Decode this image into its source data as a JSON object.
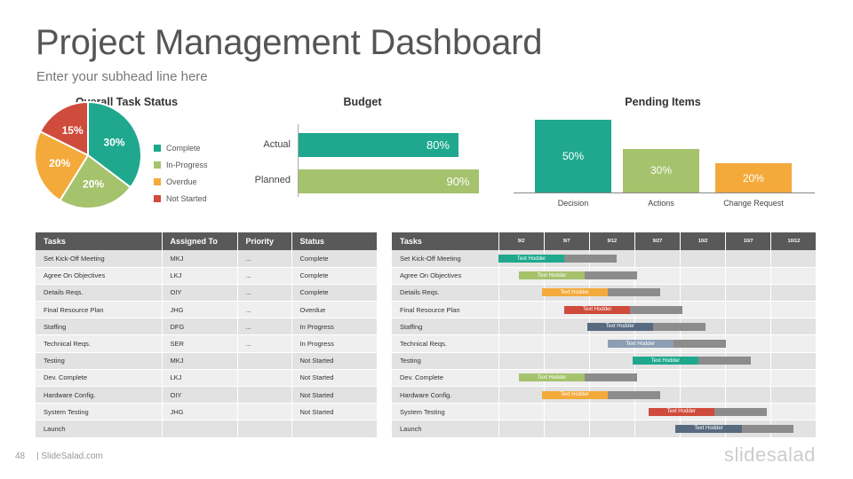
{
  "header": {
    "title": "Project Management Dashboard",
    "subtitle": "Enter your subhead line here"
  },
  "task_status": {
    "title": "Overall Task Status",
    "legend": [
      "Complete",
      "In-Progress",
      "Overdue",
      "Not Started"
    ]
  },
  "budget": {
    "title": "Budget",
    "labels": [
      "Actual",
      "Planned"
    ]
  },
  "pending": {
    "title": "Pending Items"
  },
  "colors": {
    "teal": "#1fa88e",
    "green": "#a5c26c",
    "orange": "#f3aa3b",
    "red": "#cf4b3b",
    "slate": "#576a80",
    "blue_gray": "#8d9eb3",
    "gray": "#8c8c8c"
  },
  "chart_data": [
    {
      "type": "pie",
      "title": "Overall Task Status",
      "labels": [
        "Complete",
        "In-Progress",
        "Overdue",
        "Not Started"
      ],
      "values": [
        30,
        20,
        20,
        15
      ],
      "value_labels": [
        "30%",
        "20%",
        "20%",
        "15%"
      ],
      "colors": [
        "#1fa88e",
        "#a5c26c",
        "#f3aa3b",
        "#cf4b3b"
      ]
    },
    {
      "type": "bar",
      "orientation": "horizontal",
      "title": "Budget",
      "categories": [
        "Actual",
        "Planned"
      ],
      "values": [
        80,
        90
      ],
      "value_labels": [
        "80%",
        "90%"
      ],
      "colors": [
        "#1fa88e",
        "#a5c26c"
      ],
      "xlim": [
        0,
        100
      ]
    },
    {
      "type": "bar",
      "title": "Pending Items",
      "categories": [
        "Decision",
        "Actions",
        "Change Request"
      ],
      "values": [
        50,
        30,
        20
      ],
      "value_labels": [
        "50%",
        "30%",
        "20%"
      ],
      "colors": [
        "#1fa88e",
        "#a5c26c",
        "#f3aa3b"
      ],
      "ylim": [
        0,
        50
      ]
    }
  ],
  "task_table": {
    "headers": [
      "Tasks",
      "Assigned To",
      "Priority",
      "Status"
    ],
    "rows": [
      [
        "Set Kick-Off Meeting",
        "MKJ",
        "...",
        "Complete"
      ],
      [
        "Agree On Objectives",
        "LKJ",
        "...",
        "Complete"
      ],
      [
        "Details Reqs.",
        "OIY",
        "...",
        "Complete"
      ],
      [
        "Final Resource Plan",
        "JHG",
        "...",
        "Overdue"
      ],
      [
        "Staffing",
        "DFG",
        "...",
        "In Progress"
      ],
      [
        "Technical Reqs.",
        "SER",
        "...",
        "In Progress"
      ],
      [
        "Testing",
        "MKJ",
        "",
        "Not Started"
      ],
      [
        "Dev. Complete",
        "LKJ",
        "",
        "Not Started"
      ],
      [
        "Hardware Config.",
        "OIY",
        "",
        "Not Started"
      ],
      [
        "System Testing",
        "JHG",
        "",
        "Not Started"
      ],
      [
        "Launch",
        "",
        "",
        ""
      ]
    ]
  },
  "gantt": {
    "header": "Tasks",
    "dates": [
      "9/2",
      "9/7",
      "9/12",
      "9/27",
      "10/2",
      "10/7",
      "10/12"
    ],
    "bar_label": "Text Hodder",
    "tasks": [
      {
        "name": "Set Kick-Off Meeting",
        "start": 0.0,
        "mid": 1.45,
        "end": 2.6,
        "color": "#1fa88e"
      },
      {
        "name": "Agree On Objectives",
        "start": 0.45,
        "mid": 1.9,
        "end": 3.05,
        "color": "#a5c26c"
      },
      {
        "name": "Details Reqs.",
        "start": 0.95,
        "mid": 2.4,
        "end": 3.55,
        "color": "#f3aa3b"
      },
      {
        "name": "Final Resource Plan",
        "start": 1.45,
        "mid": 2.9,
        "end": 4.05,
        "color": "#cf4b3b"
      },
      {
        "name": "Staffing",
        "start": 1.95,
        "mid": 3.4,
        "end": 4.55,
        "color": "#576a80"
      },
      {
        "name": "Technical Reqs.",
        "start": 2.4,
        "mid": 3.85,
        "end": 5.0,
        "color": "#8d9eb3"
      },
      {
        "name": "Testing",
        "start": 2.95,
        "mid": 4.4,
        "end": 5.55,
        "color": "#1fa88e"
      },
      {
        "name": "Dev. Complete",
        "start": 0.45,
        "mid": 1.9,
        "end": 3.05,
        "color": "#a5c26c"
      },
      {
        "name": "Hardware Config.",
        "start": 0.95,
        "mid": 2.4,
        "end": 3.55,
        "color": "#f3aa3b"
      },
      {
        "name": "System Testing",
        "start": 3.3,
        "mid": 4.75,
        "end": 5.9,
        "color": "#cf4b3b"
      },
      {
        "name": "Launch",
        "start": 3.9,
        "mid": 5.35,
        "end": 6.5,
        "color": "#576a80"
      }
    ]
  },
  "footer": {
    "page_number": "48",
    "site": "| SlideSalad.com",
    "logo": "slidesalad"
  }
}
